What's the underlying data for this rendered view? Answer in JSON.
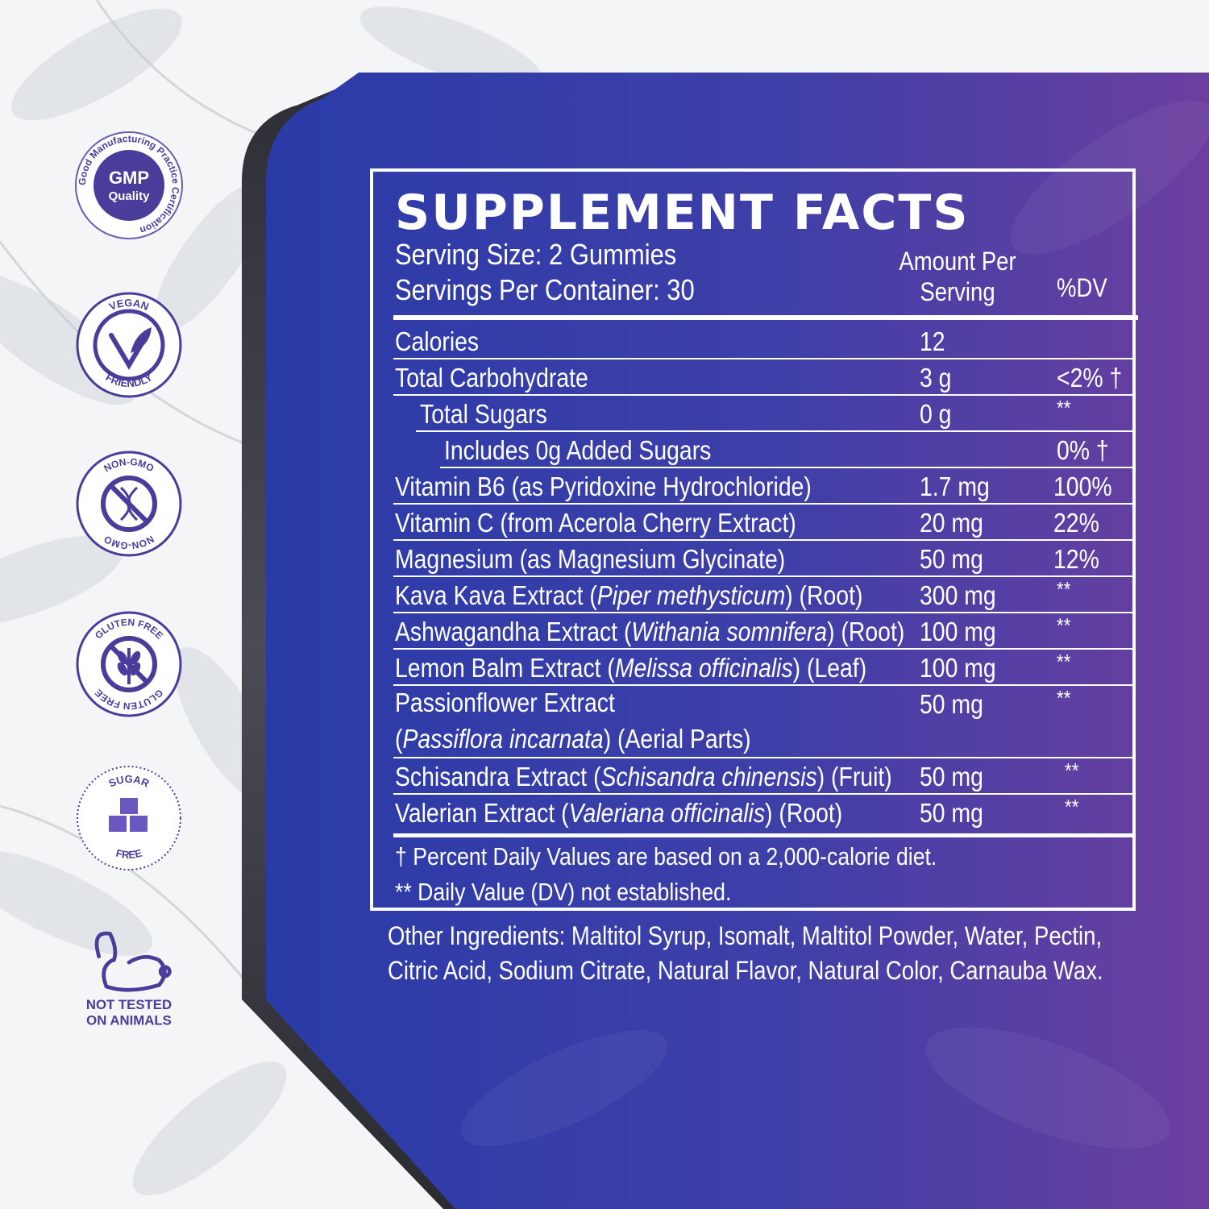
{
  "badges": {
    "gmp": {
      "center": "GMP",
      "center2": "Quality",
      "ring": "Good Manufacturing Practice Certification"
    },
    "vegan": {
      "top": "VEGAN",
      "bottom": "FRIENDLY"
    },
    "non_gmo": {
      "top": "NON-GMO",
      "bottom": "NON-GMO"
    },
    "gluten_free": {
      "top": "GLUTEN FREE",
      "bottom": "GLUTEN FREE"
    },
    "sugar_free": {
      "top": "SUGAR",
      "bottom": "FREE"
    },
    "not_tested": {
      "line1": "NOT TESTED",
      "line2": "ON ANIMALS"
    }
  },
  "facts": {
    "title": "SUPPLEMENT FACTS",
    "serving_size": "Serving Size: 2 Gummies",
    "servings_per_container": "Servings Per Container: 30",
    "amount_header": "Amount Per Serving",
    "dv_header": "%DV",
    "rows": [
      {
        "name": "Calories",
        "amount": "12",
        "dv": ""
      },
      {
        "name": "Total Carbohydrate",
        "amount": "3 g",
        "dv": "<2% †"
      },
      {
        "name": "Total Sugars",
        "amount": "0 g",
        "dv": "**"
      },
      {
        "name": "Includes 0g Added Sugars",
        "amount": "",
        "dv": "0% †"
      },
      {
        "name": "Vitamin B6 (as Pyridoxine Hydrochloride)",
        "amount": "1.7 mg",
        "dv": "100%"
      },
      {
        "name": "Vitamin C (from Acerola Cherry Extract)",
        "amount": "20 mg",
        "dv": "22%"
      },
      {
        "name": "Magnesium (as Magnesium Glycinate)",
        "amount": "50 mg",
        "dv": "12%"
      },
      {
        "name_pre": "Kava Kava Extract (",
        "name_it": "Piper methysticum",
        "name_post": ") (Root)",
        "amount": "300 mg",
        "dv": "**"
      },
      {
        "name_pre": "Ashwagandha Extract (",
        "name_it": "Withania somnifera",
        "name_post": ") (Root)",
        "amount": "100 mg",
        "dv": "**"
      },
      {
        "name_pre": "Lemon Balm Extract (",
        "name_it": "Melissa officinalis",
        "name_post": ") (Leaf)",
        "amount": "100 mg",
        "dv": "**"
      },
      {
        "name": "Passionflower Extract",
        "name2_pre": "(",
        "name2_it": "Passiflora incarnata",
        "name2_post": ") (Aerial Parts)",
        "amount": "50 mg",
        "dv": "**"
      },
      {
        "name_pre": "Schisandra Extract (",
        "name_it": "Schisandra chinensis",
        "name_post": ") (Fruit)",
        "amount": "50 mg",
        "dv": "**"
      },
      {
        "name_pre": "Valerian Extract (",
        "name_it": "Valeriana officinalis",
        "name_post": ") (Root)",
        "amount": "50 mg",
        "dv": "**"
      }
    ],
    "footnote_1": "† Percent Daily Values are based on a 2,000-calorie diet.",
    "footnote_2": "** Daily Value (DV) not established."
  },
  "other_ingredients": "Other Ingredients: Maltitol Syrup, Isomalt, Maltitol Powder, Water, Pectin, Citric Acid, Sodium Citrate, Natural Flavor, Natural Color, Carnauba Wax.",
  "colors": {
    "panel_left": "#2d3aa8",
    "panel_right": "#6a40a2",
    "badge_purple": "#4a3c9a",
    "panel_edge": "#3a3a42"
  }
}
